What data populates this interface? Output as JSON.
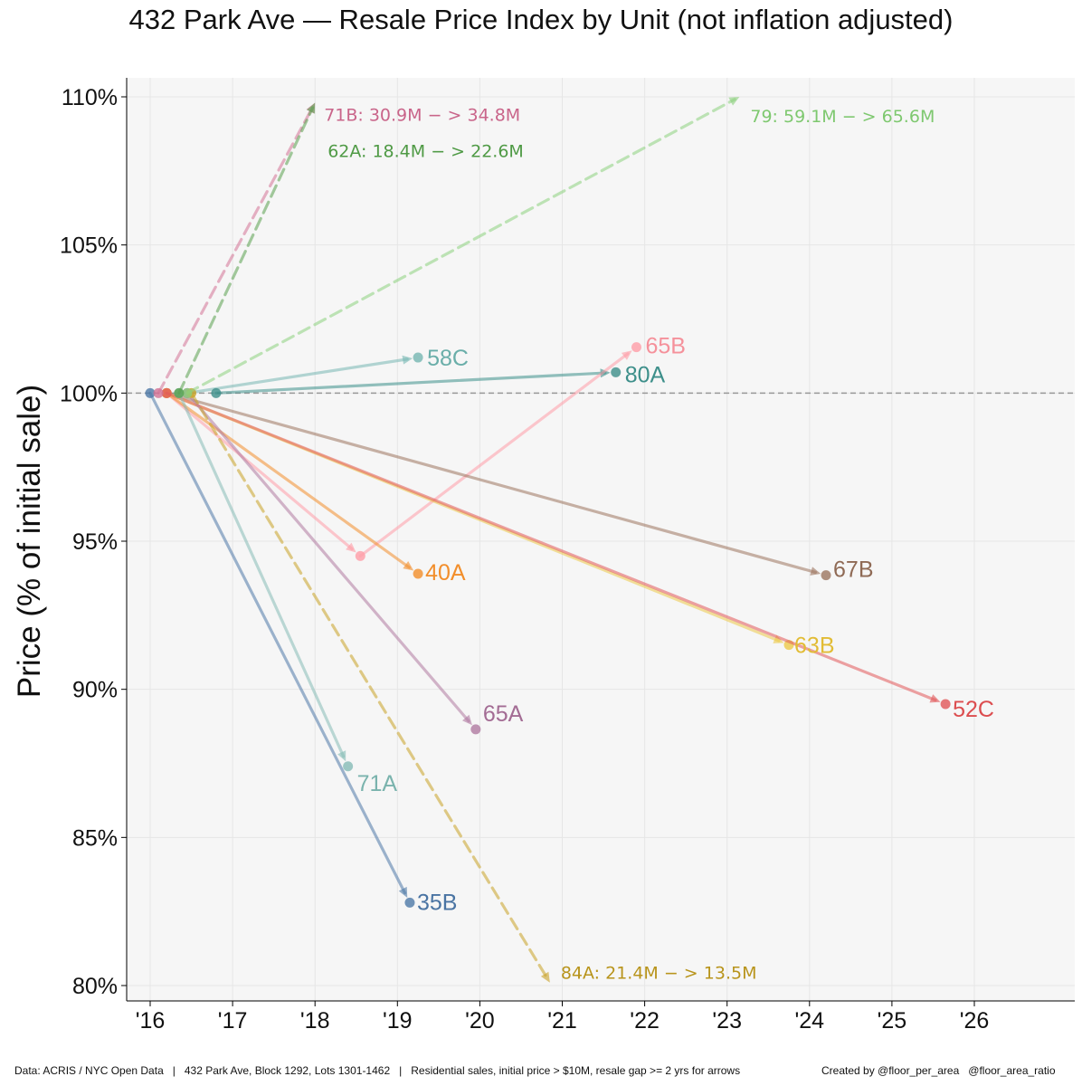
{
  "title": "432 Park Ave — Resale Price Index by Unit  (not inflation adjusted)",
  "footer": {
    "source": "Data: ACRIS / NYC Open Data   |   432 Park Ave, Block 1292, Lots 1301-1462   |   Residential sales, initial price > $10M, resale gap >= 2 yrs for arrows",
    "credit": "Created by @floor_per_area   @floor_area_ratio"
  },
  "chart_data": {
    "type": "scatter",
    "title": "432 Park Ave — Resale Price Index by Unit  (not inflation adjusted)",
    "xlabel": "",
    "ylabel": "Price (% of initial sale)",
    "xlim": [
      2015.85,
      2027.2
    ],
    "ylim": [
      79.5,
      110.5
    ],
    "x_ticks": [
      2016,
      2017,
      2018,
      2019,
      2020,
      2021,
      2022,
      2023,
      2024,
      2025,
      2026
    ],
    "x_tick_labels": [
      "'16",
      "'17",
      "'18",
      "'19",
      "'20",
      "'21",
      "'22",
      "'23",
      "'24",
      "'25",
      "'26"
    ],
    "y_ticks": [
      80,
      85,
      90,
      95,
      100,
      105,
      110
    ],
    "y_tick_labels": [
      "80%",
      "85%",
      "90%",
      "95%",
      "100%",
      "105%",
      "110%"
    ],
    "reference_line": 100,
    "grid": true,
    "series": [
      {
        "name": "58C",
        "color": "#76b7b2",
        "style": "solid",
        "points": [
          [
            2016.45,
            100
          ],
          [
            2019.25,
            101.2
          ]
        ]
      },
      {
        "name": "80A",
        "color": "#3d8f8a",
        "style": "solid",
        "points": [
          [
            2016.8,
            100
          ],
          [
            2021.65,
            100.7
          ]
        ]
      },
      {
        "name": "65B",
        "color": "#ff9da7",
        "style": "solid",
        "points": [
          [
            2016.2,
            100
          ],
          [
            2018.55,
            94.5
          ],
          [
            2021.9,
            101.55
          ]
        ]
      },
      {
        "name": "67B",
        "color": "#9c755f",
        "style": "solid",
        "points": [
          [
            2016.2,
            100
          ],
          [
            2024.2,
            93.85
          ]
        ]
      },
      {
        "name": "40A",
        "color": "#f28e2b",
        "style": "solid",
        "points": [
          [
            2016.2,
            100
          ],
          [
            2019.25,
            93.9
          ]
        ]
      },
      {
        "name": "63B",
        "color": "#edc948",
        "style": "solid",
        "points": [
          [
            2016.2,
            100
          ],
          [
            2023.75,
            91.5
          ]
        ]
      },
      {
        "name": "52C",
        "color": "#e15759",
        "style": "solid",
        "points": [
          [
            2016.2,
            100
          ],
          [
            2025.65,
            89.5
          ]
        ]
      },
      {
        "name": "65A",
        "color": "#b07aa1",
        "style": "solid",
        "points": [
          [
            2016.45,
            100
          ],
          [
            2019.95,
            88.65
          ]
        ]
      },
      {
        "name": "71A",
        "color": "#86bcb6",
        "style": "solid",
        "points": [
          [
            2016.35,
            100
          ],
          [
            2018.4,
            87.4
          ]
        ]
      },
      {
        "name": "35B",
        "color": "#4e79a7",
        "style": "solid",
        "points": [
          [
            2016.0,
            100
          ],
          [
            2019.15,
            82.8
          ]
        ]
      },
      {
        "name": "84A",
        "color": "#c9a227",
        "style": "dashed",
        "points": [
          [
            2016.5,
            100
          ],
          [
            2020.85,
            80.1
          ]
        ]
      },
      {
        "name": "79",
        "color": "#8cd17d",
        "style": "dashed",
        "points": [
          [
            2016.45,
            100
          ],
          [
            2023.15,
            110
          ]
        ]
      },
      {
        "name": "71B",
        "color": "#d37295",
        "style": "dashed",
        "points": [
          [
            2016.1,
            100
          ],
          [
            2018.0,
            109.8
          ]
        ]
      },
      {
        "name": "62A",
        "color": "#59a14f",
        "style": "dashed",
        "points": [
          [
            2016.35,
            100
          ],
          [
            2018.0,
            109.8
          ]
        ]
      }
    ],
    "point_labels": [
      {
        "text": "58C",
        "series": "58C",
        "color": "#6aaea9"
      },
      {
        "text": "80A",
        "series": "80A",
        "color": "#3d8f8a"
      },
      {
        "text": "65B",
        "series": "65B",
        "color": "#f5919b"
      },
      {
        "text": "67B",
        "series": "67B",
        "color": "#8f6a55"
      },
      {
        "text": "40A",
        "series": "40A",
        "color": "#f28e2b"
      },
      {
        "text": "63B",
        "series": "63B",
        "color": "#e2bc35"
      },
      {
        "text": "52C",
        "series": "52C",
        "color": "#dc4d4f"
      },
      {
        "text": "65A",
        "series": "65A",
        "color": "#a36c94"
      },
      {
        "text": "71A",
        "series": "71A",
        "color": "#7ab3ad"
      },
      {
        "text": "35B",
        "series": "35B",
        "color": "#4a74a3"
      }
    ],
    "annotations": [
      {
        "text": "71B: 30.9M − > 34.8M",
        "series": "71B",
        "color": "#c9658a"
      },
      {
        "text": "62A: 18.4M − > 22.6M",
        "series": "62A",
        "color": "#4f9a45"
      },
      {
        "text": "79: 59.1M − > 65.6M",
        "series": "79",
        "color": "#7ec86f"
      },
      {
        "text": "84A: 21.4M − > 13.5M",
        "series": "84A",
        "color": "#b8941c"
      }
    ]
  }
}
